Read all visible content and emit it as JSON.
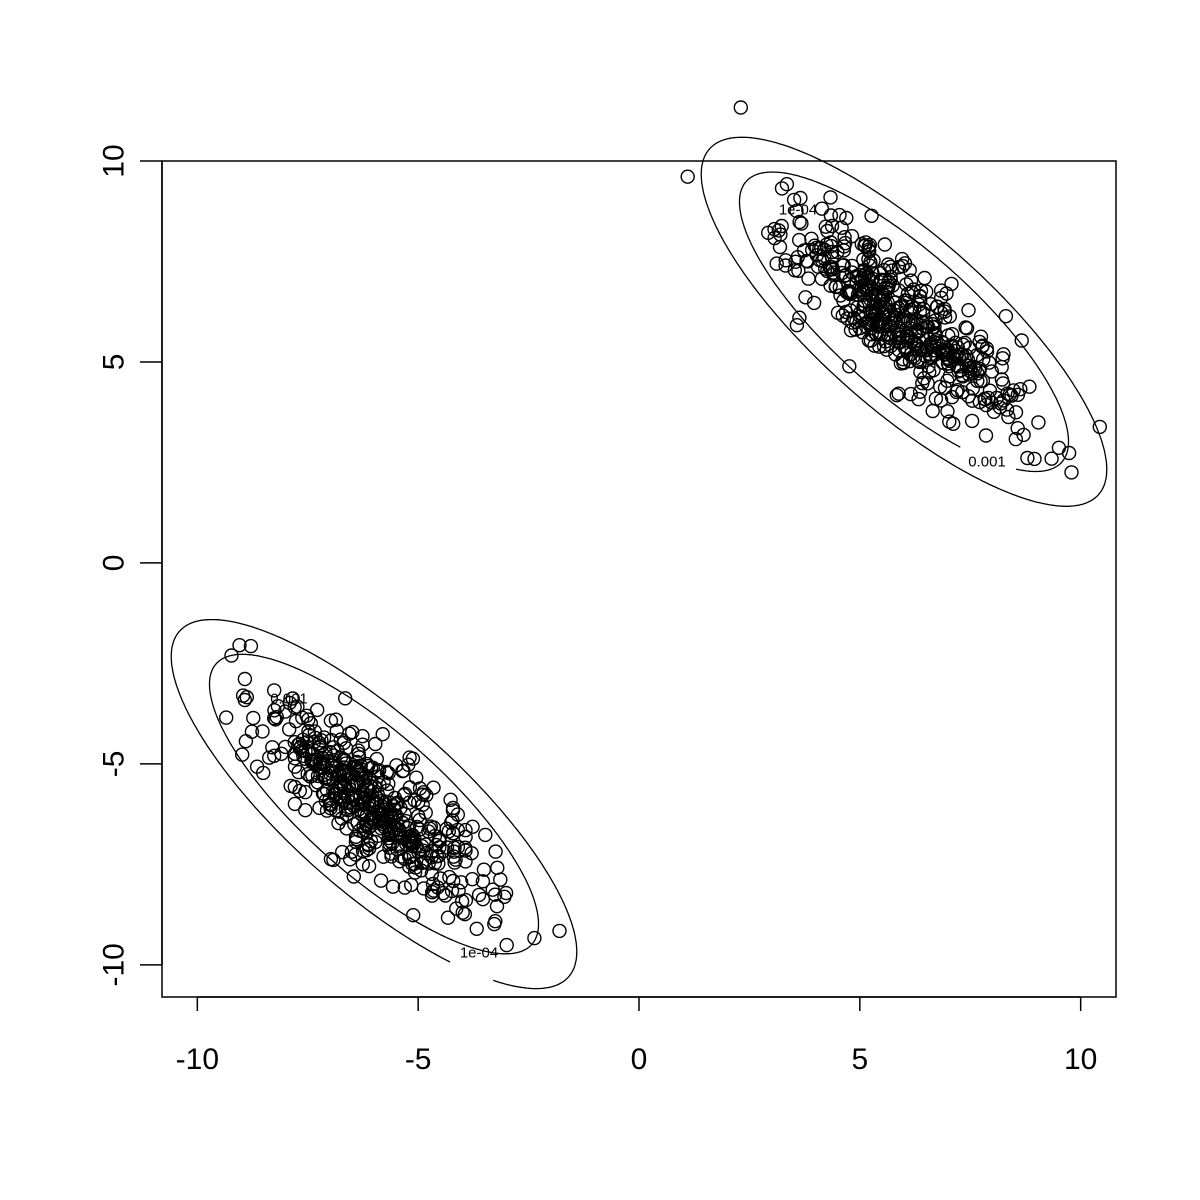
{
  "chart_data": {
    "type": "scatter",
    "title": "",
    "xlabel": "",
    "ylabel": "",
    "xlim": [
      -10.8,
      10.8
    ],
    "ylim": [
      -10.8,
      10.0
    ],
    "x_ticks": [
      -10,
      -5,
      0,
      5,
      10
    ],
    "x_tick_labels": [
      "-10",
      "-5",
      "0",
      "5",
      "10"
    ],
    "y_ticks": [
      -10,
      -5,
      0,
      5,
      10
    ],
    "y_tick_labels": [
      "-10",
      "-5",
      "0",
      "5",
      "10"
    ],
    "grid": false,
    "clusters": [
      {
        "center": [
          6,
          6
        ],
        "n_points": 500,
        "sd": [
          1.25,
          1.25
        ],
        "correlation": -0.8,
        "contour_levels": [
          "1e-04",
          "0.001"
        ]
      },
      {
        "center": [
          -6,
          -6
        ],
        "n_points": 500,
        "sd": [
          1.25,
          1.25
        ],
        "correlation": -0.8,
        "contour_levels": [
          "1e-04",
          "0.001"
        ]
      }
    ],
    "contour_labels": [
      "1e-04",
      "0.001",
      "0.001",
      "1e-04"
    ],
    "marker": "open-circle",
    "color": "#000000"
  }
}
